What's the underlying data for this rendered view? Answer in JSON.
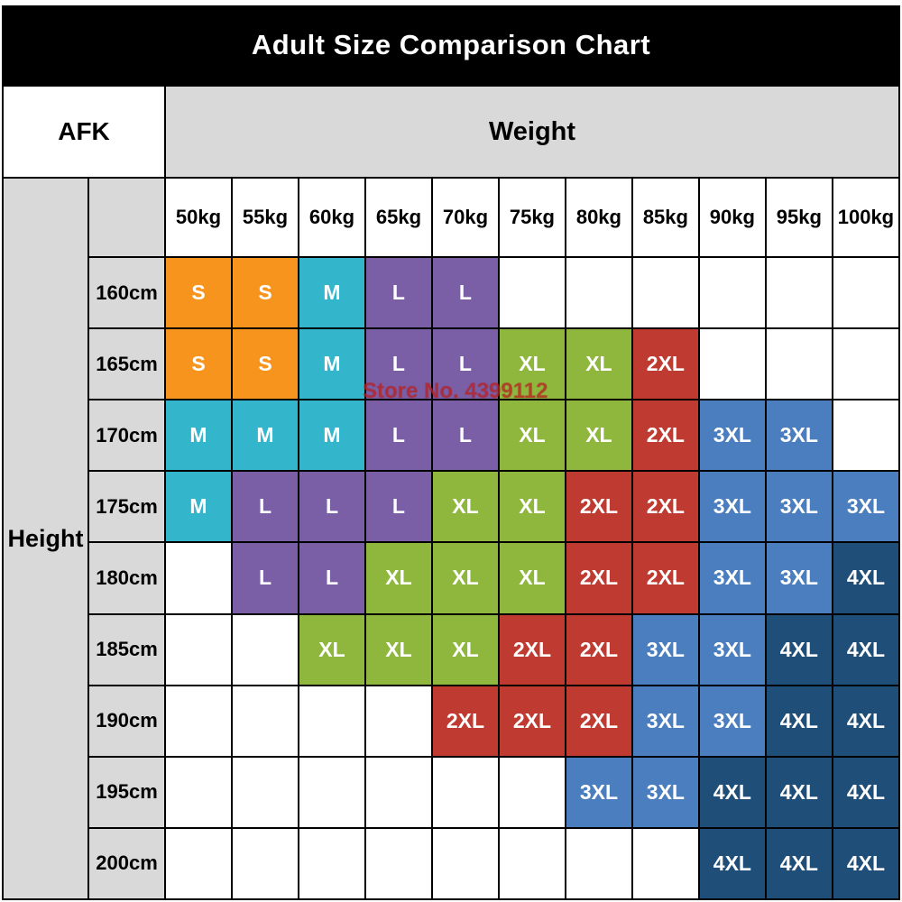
{
  "title": "Adult Size Comparison Chart",
  "corner_label": "AFK",
  "weight_label": "Weight",
  "height_label": "Height",
  "watermark": "Store No. 4399112",
  "chart_data": {
    "type": "table",
    "title": "Adult Size Comparison Chart",
    "xlabel": "Weight",
    "ylabel": "Height",
    "columns": [
      "50kg",
      "55kg",
      "60kg",
      "65kg",
      "70kg",
      "75kg",
      "80kg",
      "85kg",
      "90kg",
      "95kg",
      "100kg"
    ],
    "rows": [
      "160cm",
      "165cm",
      "170cm",
      "175cm",
      "180cm",
      "185cm",
      "190cm",
      "195cm",
      "200cm"
    ],
    "cells": [
      [
        "S",
        "S",
        "M",
        "L",
        "L",
        "",
        "",
        "",
        "",
        "",
        ""
      ],
      [
        "S",
        "S",
        "M",
        "L",
        "L",
        "XL",
        "XL",
        "2XL",
        "",
        "",
        ""
      ],
      [
        "M",
        "M",
        "M",
        "L",
        "L",
        "XL",
        "XL",
        "2XL",
        "3XL",
        "3XL",
        ""
      ],
      [
        "M",
        "L",
        "L",
        "L",
        "XL",
        "XL",
        "2XL",
        "2XL",
        "3XL",
        "3XL",
        "3XL"
      ],
      [
        "",
        "L",
        "L",
        "XL",
        "XL",
        "XL",
        "2XL",
        "2XL",
        "3XL",
        "3XL",
        "4XL"
      ],
      [
        "",
        "",
        "XL",
        "XL",
        "XL",
        "2XL",
        "2XL",
        "3XL",
        "3XL",
        "4XL",
        "4XL"
      ],
      [
        "",
        "",
        "",
        "",
        "2XL",
        "2XL",
        "2XL",
        "3XL",
        "3XL",
        "4XL",
        "4XL"
      ],
      [
        "",
        "",
        "",
        "",
        "",
        "",
        "3XL",
        "3XL",
        "4XL",
        "4XL",
        "4XL"
      ],
      [
        "",
        "",
        "",
        "",
        "",
        "",
        "",
        "",
        "4XL",
        "4XL",
        "4XL"
      ]
    ],
    "size_colors": {
      "S": "#f7941e",
      "M": "#33b5cb",
      "L": "#7a5fa6",
      "XL": "#8fb73e",
      "2XL": "#bf3b31",
      "3XL": "#4b7ebe",
      "4XL": "#1f4e79"
    },
    "header_bg": "#d9d9d9",
    "title_bar_bg": "#000000",
    "legend_position": "none",
    "grid": true
  }
}
